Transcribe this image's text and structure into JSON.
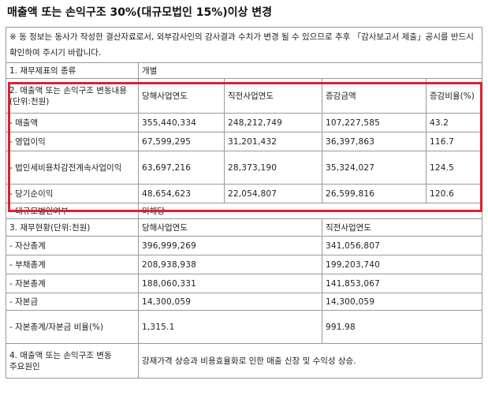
{
  "title": "매출액 또는 손익구조 30%(대규모법인 15%)이상 변경",
  "notice": "※ 동 정보는 동사가 작성한 결산자료로서, 외부감사인의 감사결과 수치가 변경 될 수 있으므로 추후 「감사보고서 제출」공시를 반드시 확인하여 주시기 바랍니다.",
  "statement_type": {
    "label": "1. 재무제표의 종류",
    "value": "개별"
  },
  "section2": {
    "header": {
      "label": "2. 매출액 또는 손익구조 변동내용(단위:천원)",
      "current": "당해사업연도",
      "previous": "직전사업연도",
      "change": "증감금액",
      "ratio": "증감비율(%)"
    },
    "rows": [
      {
        "label": "- 매출액",
        "current": "355,440,334",
        "previous": "248,212,749",
        "change": "107,227,585",
        "ratio": "43.2"
      },
      {
        "label": "- 영업이익",
        "current": "67,599,295",
        "previous": "31,201,432",
        "change": "36,397,863",
        "ratio": "116.7"
      },
      {
        "label": "- 법인세비용차감전계속사업이익",
        "current": "63,697,216",
        "previous": "28,373,190",
        "change": "35,324,027",
        "ratio": "124.5"
      },
      {
        "label": "- 당기순이익",
        "current": "48,654,623",
        "previous": "22,054,807",
        "change": "26,599,816",
        "ratio": "120.6"
      }
    ]
  },
  "large_corp": {
    "label": "- 대규모법인여부",
    "value": "미해당"
  },
  "section3": {
    "header": {
      "label": "3. 재무현황(단위:천원)",
      "current": "당해사업연도",
      "previous": "직전사업연도"
    },
    "rows": [
      {
        "label": "- 자산총계",
        "current": "396,999,269",
        "previous": "341,056,807"
      },
      {
        "label": "- 부채총계",
        "current": "208,938,938",
        "previous": "199,203,740"
      },
      {
        "label": "- 자본총계",
        "current": "188,060,331",
        "previous": "141,853,067"
      },
      {
        "label": "- 자본금",
        "current": "14,300,059",
        "previous": "14,300,059"
      },
      {
        "label": "- 자본총계/자본금 비율(%)",
        "current": "1,315.1",
        "previous": "991.98"
      }
    ]
  },
  "section4": {
    "label": "4. 매출액 또는 손익구조 변동 주요원인",
    "value": "강재가격 상승과 비용효율화로 인한 매출 신장 및 수익성 상승."
  },
  "colors": {
    "highlight": "#e0202e",
    "border": "#9a9a9a"
  }
}
